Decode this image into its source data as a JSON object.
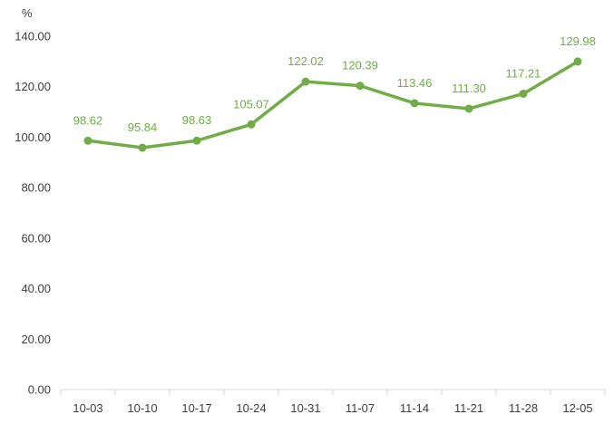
{
  "chart_data": {
    "type": "line",
    "title": "",
    "xlabel": "",
    "ylabel": "",
    "unit_label": "%",
    "categories": [
      "10-03",
      "10-10",
      "10-17",
      "10-24",
      "10-31",
      "11-07",
      "11-14",
      "11-21",
      "11-28",
      "12-05"
    ],
    "series": [
      {
        "values": [
          98.62,
          95.84,
          98.63,
          105.07,
          122.02,
          120.39,
          113.46,
          111.3,
          117.21,
          129.98
        ],
        "labels": [
          "98.62",
          "95.84",
          "98.63",
          "105.07",
          "122.02",
          "120.39",
          "113.46",
          "111.30",
          "117.21",
          "129.98"
        ],
        "color": "#70AD47"
      }
    ],
    "ylim": [
      0,
      140
    ],
    "y_ticks": [
      "0.00",
      "20.00",
      "40.00",
      "60.00",
      "80.00",
      "100.00",
      "120.00",
      "140.00"
    ],
    "grid": false,
    "legend": "none",
    "axis_color": "#D9D9D9",
    "text_color": "#404040"
  }
}
